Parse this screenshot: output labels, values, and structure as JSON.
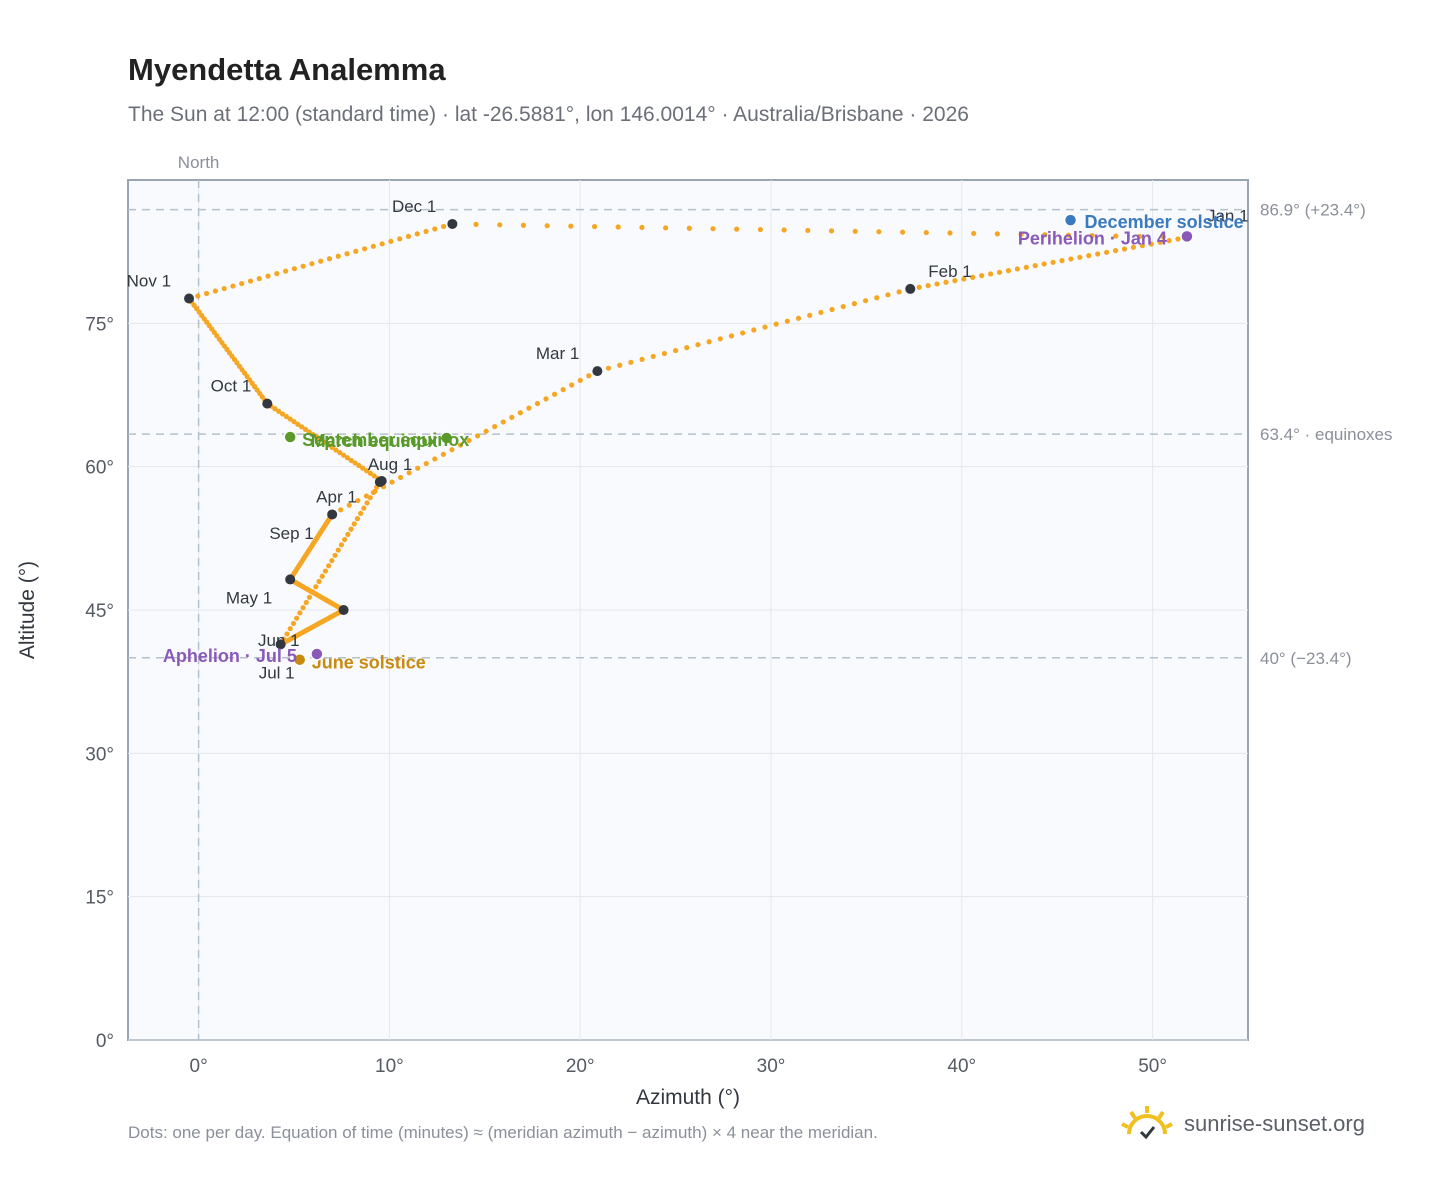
{
  "title": "Myendetta Analemma",
  "subtitle": "The Sun at 12:00 (standard time) · lat -26.5881°, lon 146.0014° · Australia/Brisbane · 2026",
  "note": "Dots: one per day. Equation of time (minutes) ≈ (meridian azimuth − azimuth) × 4 near the meridian.",
  "brand": "sunrise-sunset.org",
  "north_label": "North",
  "colors": {
    "path": "#f5a623",
    "month_dot": "#333840",
    "december_solstice": "#3a7abf",
    "june_solstice": "#c98a10",
    "equinox": "#5a9a2a",
    "apsis": "#8a5ab8",
    "plot_bg": "#f8fafd",
    "grid": "#e3e8ee",
    "ref_line": "#b4c0cc"
  },
  "chart_data": {
    "type": "scatter",
    "xlabel": "Azimuth (°)",
    "ylabel": "Altitude (°)",
    "xlim": [
      -3.7,
      55
    ],
    "ylim": [
      0,
      90
    ],
    "x_ticks": [
      0,
      10,
      20,
      30,
      40,
      50
    ],
    "x_tick_labels": [
      "0°",
      "10°",
      "20°",
      "30°",
      "40°",
      "50°"
    ],
    "y_ticks": [
      0,
      15,
      30,
      45,
      60,
      75
    ],
    "y_tick_labels": [
      "0°",
      "15°",
      "30°",
      "45°",
      "60°",
      "75°"
    ],
    "grid": true,
    "reference_lines": [
      {
        "axis": "y",
        "value": 86.9,
        "label": "86.9° (+23.4°)"
      },
      {
        "axis": "y",
        "value": 63.4,
        "label": "63.4° · equinoxes"
      },
      {
        "axis": "y",
        "value": 40.0,
        "label": "40° (−23.4°)"
      },
      {
        "axis": "x",
        "value": 0,
        "label": "North"
      }
    ],
    "months": [
      {
        "label": "Jan 1",
        "az": 51.8,
        "alt": 84.0
      },
      {
        "label": "Feb 1",
        "az": 37.3,
        "alt": 78.6
      },
      {
        "label": "Mar 1",
        "az": 20.9,
        "alt": 70.0
      },
      {
        "label": "Apr 1",
        "az": 7.0,
        "alt": 55.0
      },
      {
        "label": "May 1",
        "az": 4.8,
        "alt": 48.2
      },
      {
        "label": "Jun 1",
        "az": 7.6,
        "alt": 45.0
      },
      {
        "label": "Jul 1",
        "az": 4.3,
        "alt": 41.4
      },
      {
        "label": "Aug 1",
        "az": 9.5,
        "alt": 58.4
      },
      {
        "label": "Sep 1",
        "az": 9.6,
        "alt": 58.5
      },
      {
        "label": "Oct 1",
        "az": 3.6,
        "alt": 66.6
      },
      {
        "label": "Nov 1",
        "az": -0.5,
        "alt": 77.6
      },
      {
        "label": "Dec 1",
        "az": 13.3,
        "alt": 85.4
      }
    ],
    "events": [
      {
        "label": "December solstice",
        "az": 45.7,
        "alt": 85.8,
        "kind": "december_solstice"
      },
      {
        "label": "Perihelion · Jan 4",
        "az": 51.8,
        "alt": 84.1,
        "kind": "apsis"
      },
      {
        "label": "March equinox",
        "az": 13.0,
        "alt": 63.0,
        "kind": "equinox"
      },
      {
        "label": "September equinox",
        "az": 4.8,
        "alt": 63.1,
        "kind": "equinox"
      },
      {
        "label": "June solstice",
        "az": 5.3,
        "alt": 39.8,
        "kind": "june_solstice"
      },
      {
        "label": "Aphelion · Jul 5",
        "az": 6.2,
        "alt": 40.4,
        "kind": "apsis"
      }
    ]
  }
}
